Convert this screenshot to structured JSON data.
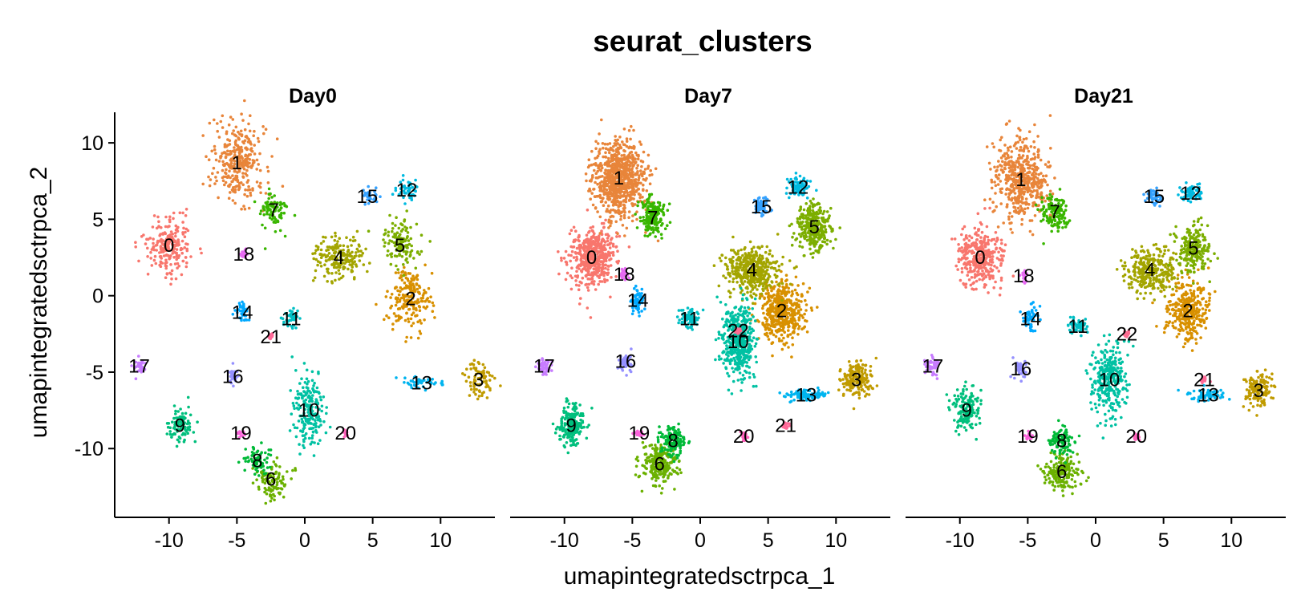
{
  "chart_data": {
    "type": "scatter",
    "title": "seurat_clusters",
    "xlabel": "umapintegratedsctrpca_1",
    "ylabel": "umapintegratedsctrpca_2",
    "xlim": [
      -14,
      14
    ],
    "ylim": [
      -14.5,
      12
    ],
    "x_ticks": [
      -10,
      -5,
      0,
      5,
      10
    ],
    "x_tick_labels": [
      "-10",
      "-5",
      "0",
      "5",
      "10"
    ],
    "y_ticks": [
      -10,
      -5,
      0,
      5,
      10
    ],
    "y_tick_labels": [
      "-10",
      "-5",
      "0",
      "5",
      "10"
    ],
    "grid": false,
    "legend": "none",
    "cluster_colors": {
      "0": "#F8766D",
      "1": "#E8853A",
      "2": "#D89000",
      "3": "#C09B00",
      "4": "#A3A500",
      "5": "#7CAE00",
      "6": "#6BB100",
      "7": "#39B600",
      "8": "#00BA38",
      "9": "#00BF7D",
      "10": "#00C1A3",
      "11": "#00BFC4",
      "12": "#00BAE0",
      "13": "#00B4EF",
      "14": "#00A9FF",
      "15": "#35A2FF",
      "16": "#9590FF",
      "17": "#C77CFF",
      "18": "#E76BF3",
      "19": "#FA62DB",
      "20": "#FF62BC",
      "21": "#FF6A98",
      "22": "#FF6C91"
    },
    "facets": [
      {
        "name": "Day0",
        "clusters": [
          {
            "id": "0",
            "label": "0",
            "x": -10,
            "y": 3.3
          },
          {
            "id": "1",
            "label": "1",
            "x": -5,
            "y": 8.7
          },
          {
            "id": "2",
            "label": "2",
            "x": 7.8,
            "y": -0.2
          },
          {
            "id": "3",
            "label": "3",
            "x": 12.8,
            "y": -5.5
          },
          {
            "id": "4",
            "label": "4",
            "x": 2.5,
            "y": 2.5
          },
          {
            "id": "5",
            "label": "5",
            "x": 7,
            "y": 3.3
          },
          {
            "id": "6",
            "label": "6",
            "x": -2.5,
            "y": -12
          },
          {
            "id": "7",
            "label": "7",
            "x": -2.3,
            "y": 5.6
          },
          {
            "id": "8",
            "label": "8",
            "x": -3.5,
            "y": -10.8
          },
          {
            "id": "9",
            "label": "9",
            "x": -9.2,
            "y": -8.5
          },
          {
            "id": "10",
            "label": "10",
            "x": 0.3,
            "y": -7.5
          },
          {
            "id": "11",
            "label": "11",
            "x": -1,
            "y": -1.5
          },
          {
            "id": "12",
            "label": "12",
            "x": 7.5,
            "y": 6.9
          },
          {
            "id": "13",
            "label": "13",
            "x": 8.6,
            "y": -5.7
          },
          {
            "id": "14",
            "label": "14",
            "x": -4.6,
            "y": -1.1
          },
          {
            "id": "15",
            "label": "15",
            "x": 4.6,
            "y": 6.5
          },
          {
            "id": "16",
            "label": "16",
            "x": -5.3,
            "y": -5.3
          },
          {
            "id": "17",
            "label": "17",
            "x": -12.2,
            "y": -4.6
          },
          {
            "id": "18",
            "label": "18",
            "x": -4.5,
            "y": 2.7
          },
          {
            "id": "19",
            "label": "19",
            "x": -4.7,
            "y": -9
          },
          {
            "id": "20",
            "label": "20",
            "x": 3,
            "y": -9
          },
          {
            "id": "21",
            "label": "21",
            "x": -2.5,
            "y": -2.7
          }
        ]
      },
      {
        "name": "Day7",
        "clusters": [
          {
            "id": "0",
            "label": "0",
            "x": -8,
            "y": 2.5
          },
          {
            "id": "1",
            "label": "1",
            "x": -6,
            "y": 7.7
          },
          {
            "id": "2",
            "label": "2",
            "x": 6,
            "y": -1
          },
          {
            "id": "3",
            "label": "3",
            "x": 11.5,
            "y": -5.5
          },
          {
            "id": "4",
            "label": "4",
            "x": 3.8,
            "y": 1.7
          },
          {
            "id": "5",
            "label": "5",
            "x": 8.4,
            "y": 4.5
          },
          {
            "id": "6",
            "label": "6",
            "x": -3,
            "y": -11
          },
          {
            "id": "7",
            "label": "7",
            "x": -3.5,
            "y": 5.1
          },
          {
            "id": "8",
            "label": "8",
            "x": -2,
            "y": -9.5
          },
          {
            "id": "9",
            "label": "9",
            "x": -9.5,
            "y": -8.5
          },
          {
            "id": "10",
            "label": "10",
            "x": 2.8,
            "y": -3
          },
          {
            "id": "11",
            "label": "11",
            "x": -0.8,
            "y": -1.5
          },
          {
            "id": "12",
            "label": "12",
            "x": 7.2,
            "y": 7.1
          },
          {
            "id": "13",
            "label": "13",
            "x": 7.8,
            "y": -6.5
          },
          {
            "id": "14",
            "label": "14",
            "x": -4.6,
            "y": -0.3
          },
          {
            "id": "15",
            "label": "15",
            "x": 4.5,
            "y": 5.8
          },
          {
            "id": "16",
            "label": "16",
            "x": -5.5,
            "y": -4.3
          },
          {
            "id": "17",
            "label": "17",
            "x": -11.5,
            "y": -4.6
          },
          {
            "id": "18",
            "label": "18",
            "x": -5.6,
            "y": 1.4
          },
          {
            "id": "19",
            "label": "19",
            "x": -4.5,
            "y": -9
          },
          {
            "id": "20",
            "label": "20",
            "x": 3.2,
            "y": -9.2
          },
          {
            "id": "21",
            "label": "21",
            "x": 6.3,
            "y": -8.5
          },
          {
            "id": "22",
            "label": "22",
            "x": 2.8,
            "y": -2.3
          }
        ]
      },
      {
        "name": "Day21",
        "clusters": [
          {
            "id": "0",
            "label": "0",
            "x": -8.5,
            "y": 2.5
          },
          {
            "id": "1",
            "label": "1",
            "x": -5.5,
            "y": 7.6
          },
          {
            "id": "2",
            "label": "2",
            "x": 6.8,
            "y": -1
          },
          {
            "id": "3",
            "label": "3",
            "x": 12,
            "y": -6.2
          },
          {
            "id": "4",
            "label": "4",
            "x": 4,
            "y": 1.7
          },
          {
            "id": "5",
            "label": "5",
            "x": 7.2,
            "y": 3.1
          },
          {
            "id": "6",
            "label": "6",
            "x": -2.5,
            "y": -11.5
          },
          {
            "id": "7",
            "label": "7",
            "x": -3,
            "y": 5.5
          },
          {
            "id": "8",
            "label": "8",
            "x": -2.5,
            "y": -9.5
          },
          {
            "id": "9",
            "label": "9",
            "x": -9.5,
            "y": -7.5
          },
          {
            "id": "10",
            "label": "10",
            "x": 1,
            "y": -5.5
          },
          {
            "id": "11",
            "label": "11",
            "x": -1.3,
            "y": -2
          },
          {
            "id": "12",
            "label": "12",
            "x": 7,
            "y": 6.7
          },
          {
            "id": "13",
            "label": "13",
            "x": 8.3,
            "y": -6.5
          },
          {
            "id": "14",
            "label": "14",
            "x": -4.8,
            "y": -1.5
          },
          {
            "id": "15",
            "label": "15",
            "x": 4.3,
            "y": 6.5
          },
          {
            "id": "16",
            "label": "16",
            "x": -5.5,
            "y": -4.8
          },
          {
            "id": "17",
            "label": "17",
            "x": -12,
            "y": -4.6
          },
          {
            "id": "18",
            "label": "18",
            "x": -5.3,
            "y": 1.3
          },
          {
            "id": "19",
            "label": "19",
            "x": -5,
            "y": -9.2
          },
          {
            "id": "20",
            "label": "20",
            "x": 3,
            "y": -9.2
          },
          {
            "id": "21",
            "label": "21",
            "x": 8,
            "y": -5.5
          },
          {
            "id": "22",
            "label": "22",
            "x": 2.3,
            "y": -2.5
          }
        ]
      }
    ]
  }
}
